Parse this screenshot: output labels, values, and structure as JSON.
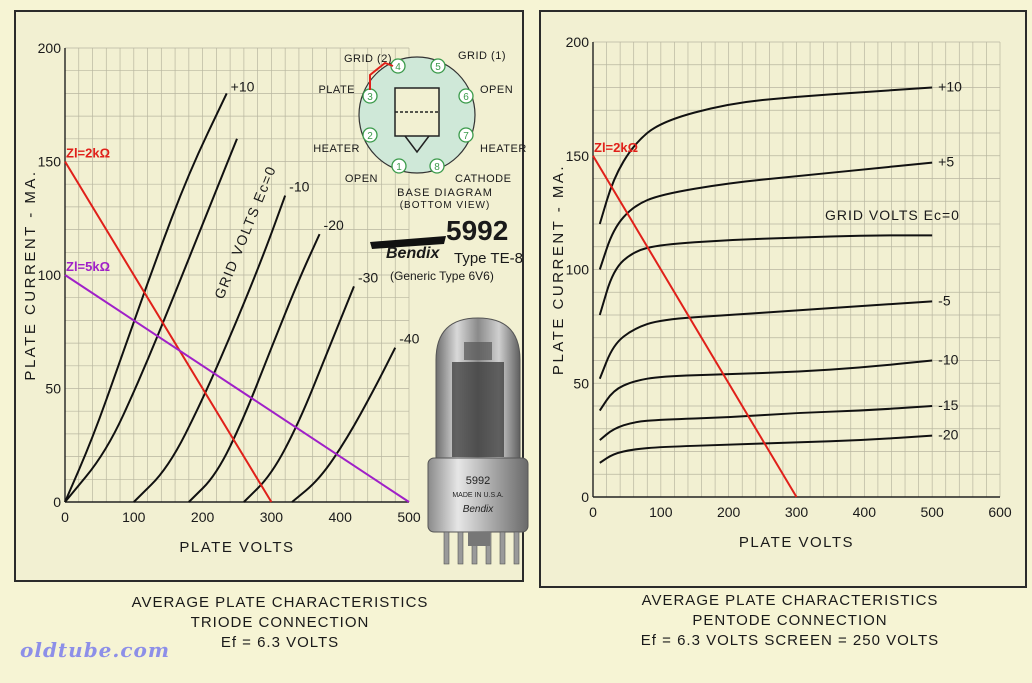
{
  "colors": {
    "background": "#f6f4d4",
    "curve": "#111111",
    "grid": "#b8b6a0",
    "load_2k": "#e0201a",
    "load_5k": "#a020c8",
    "base_circle": "#cfe8d8",
    "pin_green": "#3a9a4a"
  },
  "left_chart": {
    "chart_data": {
      "type": "line",
      "ylabel": "PLATE CURRENT - MA.",
      "xlabel": "PLATE VOLTS",
      "xlim": [
        0,
        500
      ],
      "ylim": [
        0,
        200
      ],
      "xticks": [
        "0",
        "100",
        "200",
        "300",
        "400",
        "500"
      ],
      "yticks": [
        "0",
        "50",
        "100",
        "150",
        "200"
      ],
      "grid": true,
      "annotation": "GRID VOLTS Ec=0",
      "series": [
        {
          "name": "+10",
          "x": [
            0,
            40,
            80,
            130,
            180,
            235
          ],
          "y": [
            0,
            28,
            62,
            105,
            145,
            180
          ]
        },
        {
          "name": "Ec=0",
          "x": [
            0,
            60,
            110,
            160,
            210,
            250
          ],
          "y": [
            0,
            22,
            55,
            92,
            130,
            160
          ]
        },
        {
          "name": "-10",
          "x": [
            100,
            150,
            200,
            250,
            290,
            320
          ],
          "y": [
            0,
            15,
            45,
            80,
            110,
            135
          ]
        },
        {
          "name": "-20",
          "x": [
            180,
            220,
            260,
            300,
            340,
            370
          ],
          "y": [
            0,
            12,
            37,
            68,
            98,
            118
          ]
        },
        {
          "name": "-30",
          "x": [
            260,
            300,
            340,
            380,
            420
          ],
          "y": [
            0,
            12,
            35,
            65,
            95
          ]
        },
        {
          "name": "-40",
          "x": [
            330,
            370,
            410,
            450,
            480
          ],
          "y": [
            0,
            10,
            28,
            50,
            68
          ]
        }
      ],
      "load_lines": [
        {
          "name": "Zl=2kΩ",
          "x": [
            0,
            300
          ],
          "y": [
            150,
            0
          ]
        },
        {
          "name": "Zl=5kΩ",
          "x": [
            0,
            500
          ],
          "y": [
            100,
            0
          ]
        }
      ]
    }
  },
  "right_chart": {
    "chart_data": {
      "type": "line",
      "ylabel": "PLATE CURRENT - MA.",
      "xlabel": "PLATE VOLTS",
      "xlim": [
        0,
        600
      ],
      "ylim": [
        0,
        200
      ],
      "xticks": [
        "0",
        "100",
        "200",
        "300",
        "400",
        "500",
        "600"
      ],
      "yticks": [
        "0",
        "50",
        "100",
        "150",
        "200"
      ],
      "grid": true,
      "annotation": "GRID VOLTS Ec=0",
      "series": [
        {
          "name": "+10",
          "x": [
            10,
            30,
            60,
            100,
            200,
            300,
            400,
            500
          ],
          "y": [
            120,
            140,
            155,
            165,
            173,
            176,
            178,
            180
          ]
        },
        {
          "name": "+5",
          "x": [
            10,
            30,
            60,
            100,
            200,
            300,
            400,
            500
          ],
          "y": [
            100,
            118,
            128,
            133,
            138,
            141,
            144,
            147
          ]
        },
        {
          "name": "Ec=0",
          "x": [
            10,
            30,
            60,
            100,
            200,
            300,
            400,
            500
          ],
          "y": [
            80,
            100,
            108,
            111,
            113,
            114,
            115,
            115
          ]
        },
        {
          "name": "-5",
          "x": [
            10,
            30,
            60,
            100,
            200,
            300,
            400,
            500
          ],
          "y": [
            52,
            67,
            74,
            78,
            80,
            82,
            84,
            86
          ]
        },
        {
          "name": "-10",
          "x": [
            10,
            30,
            60,
            100,
            200,
            300,
            400,
            500
          ],
          "y": [
            38,
            47,
            51,
            53,
            54,
            55,
            57,
            60
          ]
        },
        {
          "name": "-15",
          "x": [
            10,
            30,
            60,
            100,
            200,
            300,
            400,
            500
          ],
          "y": [
            25,
            30,
            33,
            34,
            35,
            37,
            38,
            40
          ]
        },
        {
          "name": "-20",
          "x": [
            10,
            30,
            60,
            100,
            200,
            300,
            400,
            500
          ],
          "y": [
            15,
            19,
            21,
            22,
            23,
            24,
            25,
            27
          ]
        }
      ],
      "load_lines": [
        {
          "name": "Zl=2kΩ",
          "x": [
            0,
            300
          ],
          "y": [
            150,
            0
          ]
        }
      ]
    }
  },
  "base_diagram": {
    "title": "BASE DIAGRAM",
    "subtitle": "(BOTTOM VIEW)",
    "pins": [
      {
        "num": "1",
        "label": "OPEN"
      },
      {
        "num": "2",
        "label": "HEATER"
      },
      {
        "num": "3",
        "label": "PLATE"
      },
      {
        "num": "4",
        "label": "GRID (2)"
      },
      {
        "num": "5",
        "label": "GRID (1)"
      },
      {
        "num": "6",
        "label": "OPEN"
      },
      {
        "num": "7",
        "label": "HEATER"
      },
      {
        "num": "8",
        "label": "CATHODE"
      }
    ]
  },
  "tube": {
    "brand": "Bendix",
    "model": "5992",
    "type_label": "Type TE-8",
    "generic": "(Generic Type 6V6)",
    "glass_model": "5992",
    "glass_made": "MADE IN U.S.A.",
    "glass_brand": "Bendix"
  },
  "captions": {
    "left": [
      "AVERAGE PLATE CHARACTERISTICS",
      "TRIODE CONNECTION",
      "Ef = 6.3 VOLTS"
    ],
    "right": [
      "AVERAGE PLATE CHARACTERISTICS",
      "PENTODE CONNECTION",
      "Ef = 6.3 VOLTS     SCREEN = 250 VOLTS"
    ]
  },
  "watermark": "oldtube.com"
}
